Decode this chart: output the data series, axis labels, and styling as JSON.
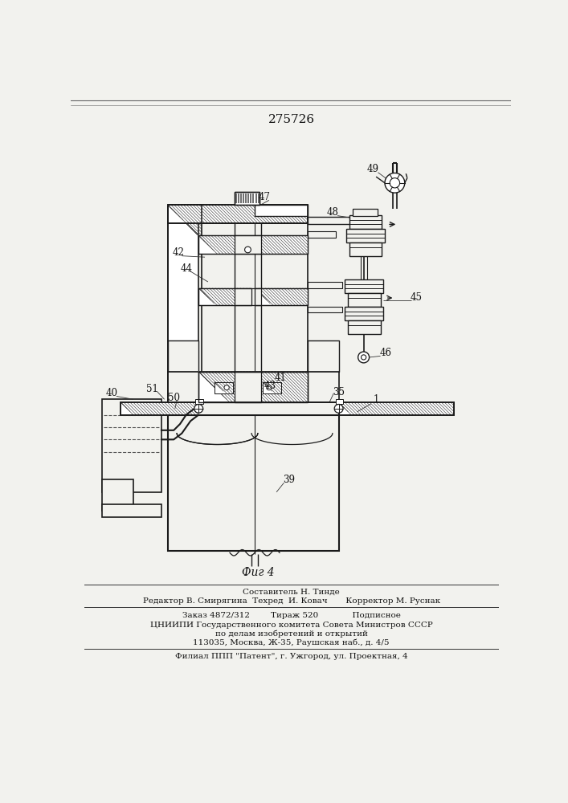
{
  "patent_number": "275726",
  "fig_label": "Фиг 4",
  "footer_line1": "Составитель Н. Тинде",
  "footer_line2": "Редактор В. Смирягина  Техред  И. Ковач       Корректор М. Руснак",
  "footer_line3": "Заказ 4872/312        Тираж 520             Подписное",
  "footer_line4": "ЦНИИПИ Государственного комитета Совета Министров СССР",
  "footer_line5": "по делам изобретений и открытий",
  "footer_line6": "113035, Москва, Ж-35, Раушская наб., д. 4/5",
  "footer_line7": "Филиал ППП \"Патент\", г. Ужгород, ул. Проектная, 4",
  "bg_color": "#f2f2ee",
  "line_color": "#1a1a1a"
}
